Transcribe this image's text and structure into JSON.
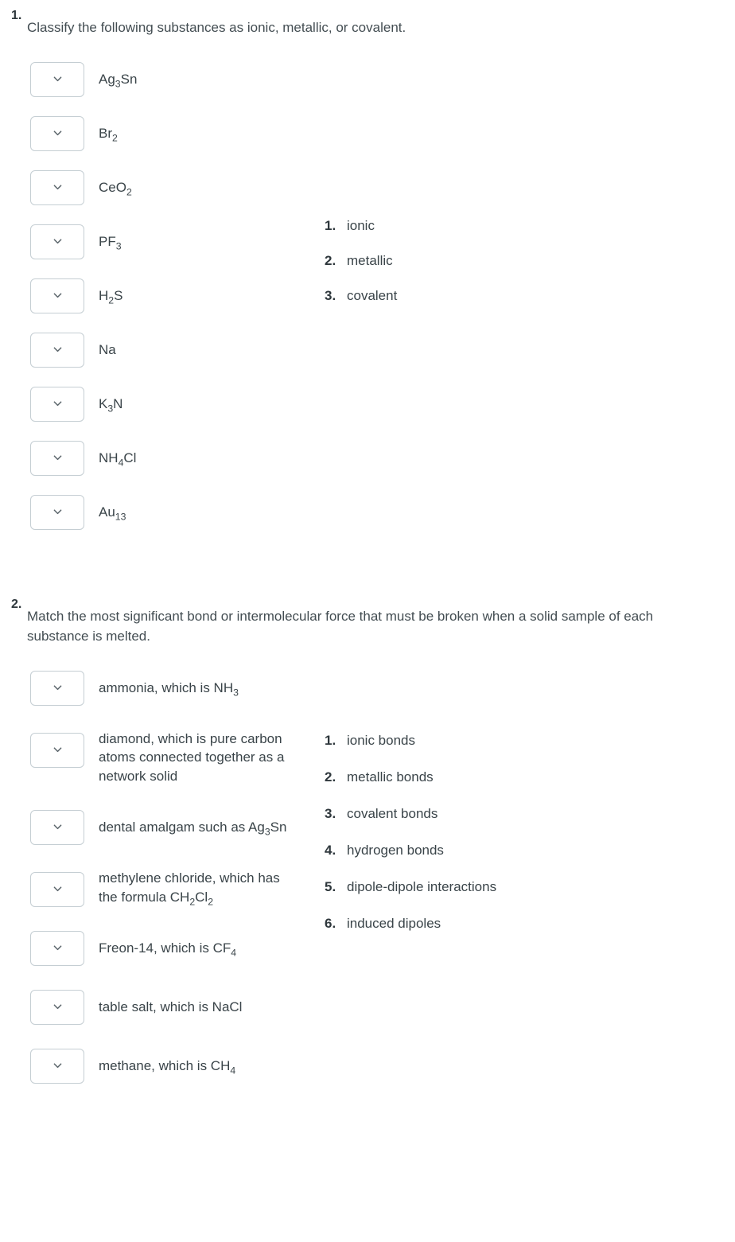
{
  "q1": {
    "number": "1.",
    "prompt": "Classify the following substances as ionic, metallic, or covalent.",
    "items": [
      {
        "formula_html": "Ag<sub>3</sub>Sn"
      },
      {
        "formula_html": "Br<sub>2</sub>"
      },
      {
        "formula_html": "CeO<sub>2</sub>"
      },
      {
        "formula_html": "PF<sub>3</sub>"
      },
      {
        "formula_html": "H<sub>2</sub>S"
      },
      {
        "formula_html": "Na"
      },
      {
        "formula_html": "K<sub>3</sub>N"
      },
      {
        "formula_html": "NH<sub>4</sub>Cl"
      },
      {
        "formula_html": "Au<sub>13</sub>"
      }
    ],
    "choices": [
      {
        "num": "1.",
        "label": "ionic"
      },
      {
        "num": "2.",
        "label": "metallic"
      },
      {
        "num": "3.",
        "label": "covalent"
      }
    ]
  },
  "q2": {
    "number": "2.",
    "prompt": "Match the most significant bond or intermolecular force that must be broken when a solid sample of each substance is melted.",
    "items": [
      {
        "formula_html": "ammonia, which is NH<sub>3</sub>"
      },
      {
        "formula_html": "diamond, which is pure carbon atoms connected together as a network solid"
      },
      {
        "formula_html": "dental amalgam such as Ag<sub>3</sub>Sn"
      },
      {
        "formula_html": "methylene chloride, which has the formula CH<sub>2</sub>Cl<sub>2</sub>"
      },
      {
        "formula_html": "Freon-14, which is CF<sub>4</sub>"
      },
      {
        "formula_html": "table salt, which is NaCl"
      },
      {
        "formula_html": "methane, which is CH<sub>4</sub>"
      }
    ],
    "choices": [
      {
        "num": "1.",
        "label": "ionic bonds"
      },
      {
        "num": "2.",
        "label": "metallic bonds"
      },
      {
        "num": "3.",
        "label": "covalent bonds"
      },
      {
        "num": "4.",
        "label": "hydrogen bonds"
      },
      {
        "num": "5.",
        "label": "dipole-dipole interactions"
      },
      {
        "num": "6.",
        "label": "induced dipoles"
      }
    ]
  },
  "style": {
    "text_color": "#3d474c",
    "border_color": "#c5ced3",
    "chevron_color": "#5a646a",
    "background": "#ffffff",
    "font_size_body": 17,
    "select_box_width": 68,
    "select_box_height": 44,
    "select_box_radius": 6
  }
}
